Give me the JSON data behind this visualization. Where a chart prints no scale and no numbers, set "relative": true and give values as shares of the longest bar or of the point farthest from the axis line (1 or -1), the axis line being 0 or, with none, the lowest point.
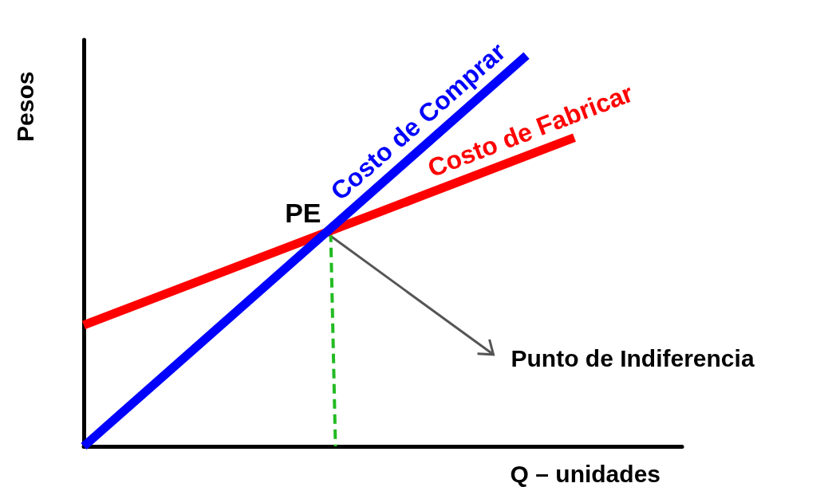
{
  "chart_data": {
    "type": "line",
    "relative": true,
    "xlabel": "Q – unidades",
    "ylabel": "Pesos",
    "categories": [
      null,
      null,
      null,
      null,
      null,
      null,
      null,
      null,
      null,
      null,
      null,
      null,
      null,
      null,
      null,
      null,
      null,
      null,
      null,
      null,
      null,
      null,
      null,
      null,
      null,
      null,
      null,
      null,
      null,
      null,
      null,
      null,
      null,
      null,
      null,
      null,
      null,
      null,
      null,
      null,
      null,
      null,
      null,
      null,
      null,
      null,
      null,
      null,
      null,
      null,
      null
    ],
    "grid": false,
    "legend": false,
    "marker": "none",
    "line_style": "solid",
    "series": [
      {
        "name": "Costo de Comprar",
        "color": "#0000ff",
        "values": [
          0,
          null,
          null,
          null,
          null,
          null,
          null,
          null,
          null,
          null,
          null,
          null,
          null,
          null,
          null,
          null,
          null,
          null,
          null,
          null,
          null,
          null,
          null,
          null,
          null,
          null,
          null,
          null,
          null,
          null,
          null,
          null,
          null,
          null,
          null,
          null,
          null,
          1,
          null,
          null,
          null,
          null,
          null,
          null,
          null,
          null,
          null,
          null,
          null,
          null,
          null
        ]
      },
      {
        "name": "Costo de Fabricar",
        "color": "#ff0000",
        "values": [
          0.31,
          null,
          null,
          null,
          null,
          null,
          null,
          null,
          null,
          null,
          null,
          null,
          null,
          null,
          null,
          null,
          null,
          null,
          null,
          null,
          null,
          null,
          null,
          null,
          null,
          null,
          null,
          null,
          null,
          null,
          null,
          null,
          null,
          null,
          null,
          null,
          null,
          null,
          null,
          null,
          null,
          0.79,
          null,
          null,
          null,
          null,
          null,
          null,
          null,
          null,
          null
        ]
      }
    ],
    "annotations": [
      "PE",
      "Punto de Indiferencia"
    ]
  }
}
